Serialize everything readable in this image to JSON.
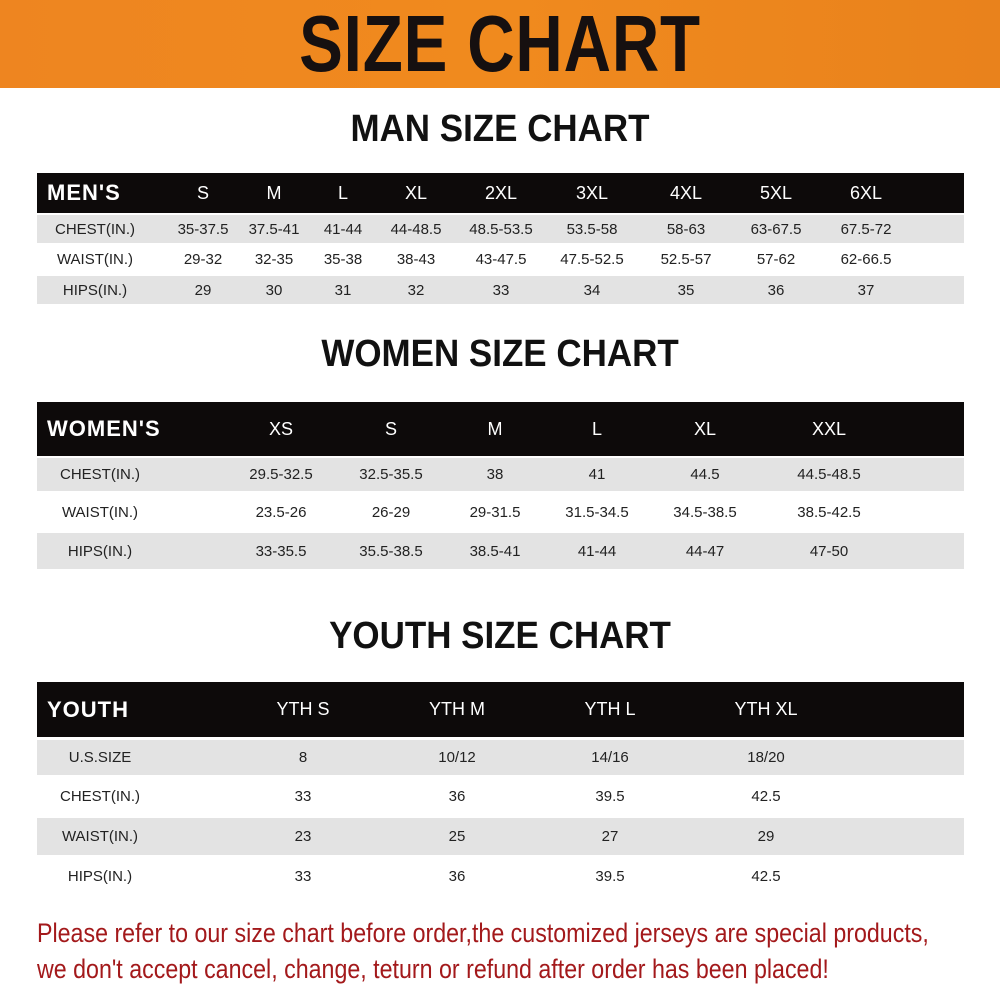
{
  "banner": {
    "title": "SIZE CHART",
    "color": "#ee8520"
  },
  "men": {
    "title": "MAN SIZE CHART",
    "header": [
      "MEN'S",
      "S",
      "M",
      "L",
      "XL",
      "2XL",
      "3XL",
      "4XL",
      "5XL",
      "6XL"
    ],
    "rows": [
      [
        "CHEST(IN.)",
        "35-37.5",
        "37.5-41",
        "41-44",
        "44-48.5",
        "48.5-53.5",
        "53.5-58",
        "58-63",
        "63-67.5",
        "67.5-72"
      ],
      [
        "WAIST(IN.)",
        "29-32",
        "32-35",
        "35-38",
        "38-43",
        "43-47.5",
        "47.5-52.5",
        "52.5-57",
        "57-62",
        "62-66.5"
      ],
      [
        "HIPS(IN.)",
        "29",
        "30",
        "31",
        "32",
        "33",
        "34",
        "35",
        "36",
        "37"
      ]
    ]
  },
  "women": {
    "title": "WOMEN SIZE CHART",
    "header": [
      "WOMEN'S",
      "XS",
      "S",
      "M",
      "L",
      "XL",
      "XXL"
    ],
    "rows": [
      [
        "CHEST(IN.)",
        "29.5-32.5",
        "32.5-35.5",
        "38",
        "41",
        "44.5",
        "44.5-48.5"
      ],
      [
        "WAIST(IN.)",
        "23.5-26",
        "26-29",
        "29-31.5",
        "31.5-34.5",
        "34.5-38.5",
        "38.5-42.5"
      ],
      [
        "HIPS(IN.)",
        "33-35.5",
        "35.5-38.5",
        "38.5-41",
        "41-44",
        "44-47",
        "47-50"
      ]
    ]
  },
  "youth": {
    "title": "YOUTH SIZE CHART",
    "header": [
      "YOUTH",
      "YTH S",
      "YTH M",
      "YTH L",
      "YTH XL"
    ],
    "rows": [
      [
        "U.S.SIZE",
        "8",
        "10/12",
        "14/16",
        "18/20"
      ],
      [
        "CHEST(IN.)",
        "33",
        "36",
        "39.5",
        "42.5"
      ],
      [
        "WAIST(IN.)",
        "23",
        "25",
        "27",
        "29"
      ],
      [
        "HIPS(IN.)",
        "33",
        "36",
        "39.5",
        "42.5"
      ]
    ]
  },
  "notice": {
    "line1": "Please refer to our size chart before order,the customized jerseys are special products,",
    "line2": "we don't accept cancel, change, teturn or refund after order has been placed!",
    "color": "#a3191b"
  }
}
